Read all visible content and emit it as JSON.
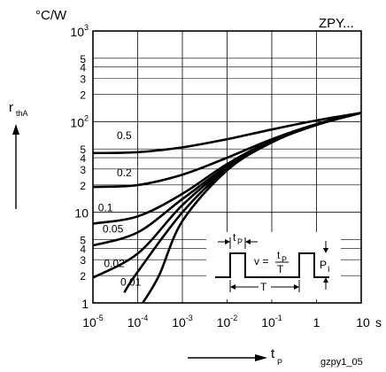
{
  "chart_data": {
    "type": "line",
    "title": "ZPY...",
    "y_unit": "°C/W",
    "ylabel_main": "r",
    "ylabel_sub": "thA",
    "xlabel_main": "t",
    "xlabel_sub": "P",
    "x_unit": "s",
    "footnote": "gzpy1_05",
    "x_scale": "log",
    "y_scale": "log",
    "xlim": [
      1e-05,
      10
    ],
    "ylim": [
      1,
      1000
    ],
    "grid": true,
    "x_ticks": [
      {
        "base": "10",
        "exp": "-5"
      },
      {
        "base": "10",
        "exp": "-4"
      },
      {
        "base": "10",
        "exp": "-3"
      },
      {
        "base": "10",
        "exp": "-2"
      },
      {
        "base": "10",
        "exp": "-1"
      },
      {
        "base": "1",
        "exp": ""
      },
      {
        "base": "10",
        "exp": ""
      }
    ],
    "y_major_ticks": [
      {
        "value": 1,
        "base": "1",
        "exp": ""
      },
      {
        "value": 10,
        "base": "10",
        "exp": ""
      },
      {
        "value": 100,
        "base": "10",
        "exp": "2"
      },
      {
        "value": 1000,
        "base": "10",
        "exp": "3"
      }
    ],
    "y_minor_ticks": [
      {
        "value": 2,
        "label": "2"
      },
      {
        "value": 3,
        "label": "3"
      },
      {
        "value": 4,
        "label": "4"
      },
      {
        "value": 5,
        "label": "5"
      },
      {
        "value": 20,
        "label": "2"
      },
      {
        "value": 30,
        "label": "3"
      },
      {
        "value": 40,
        "label": "4"
      },
      {
        "value": 50,
        "label": "5"
      },
      {
        "value": 200,
        "label": "2"
      },
      {
        "value": 300,
        "label": "3"
      },
      {
        "value": 400,
        "label": "4"
      },
      {
        "value": 500,
        "label": "5"
      }
    ],
    "series": [
      {
        "name": "0.5",
        "points": [
          [
            1e-05,
            45
          ],
          [
            0.0001,
            46
          ],
          [
            0.001,
            52
          ],
          [
            0.01,
            64
          ],
          [
            0.1,
            82
          ],
          [
            1,
            103
          ],
          [
            10,
            125
          ]
        ]
      },
      {
        "name": "0.2",
        "points": [
          [
            1e-05,
            19
          ],
          [
            0.0001,
            20
          ],
          [
            0.001,
            26
          ],
          [
            0.01,
            40
          ],
          [
            0.1,
            64
          ],
          [
            1,
            94
          ],
          [
            10,
            125
          ]
        ]
      },
      {
        "name": "0.1",
        "points": [
          [
            1e-05,
            7.5
          ],
          [
            0.0001,
            9
          ],
          [
            0.001,
            16
          ],
          [
            0.01,
            34
          ],
          [
            0.1,
            62
          ],
          [
            1,
            93
          ],
          [
            10,
            125
          ]
        ]
      },
      {
        "name": "0.05",
        "points": [
          [
            1e-05,
            4.3
          ],
          [
            0.0001,
            6
          ],
          [
            0.001,
            14
          ],
          [
            0.01,
            32
          ],
          [
            0.1,
            61
          ],
          [
            1,
            93
          ],
          [
            10,
            125
          ]
        ]
      },
      {
        "name": "0.02",
        "points": [
          [
            1e-05,
            1.9
          ],
          [
            0.0001,
            3.5
          ],
          [
            0.001,
            12
          ],
          [
            0.01,
            31
          ],
          [
            0.1,
            60
          ],
          [
            1,
            92
          ],
          [
            10,
            125
          ]
        ]
      },
      {
        "name": "0.01",
        "points": [
          [
            5e-05,
            1.3
          ],
          [
            0.0001,
            2.2
          ],
          [
            0.001,
            10
          ],
          [
            0.01,
            30
          ],
          [
            0.1,
            60
          ],
          [
            1,
            92
          ],
          [
            10,
            125
          ]
        ]
      },
      {
        "name": "",
        "points": [
          [
            0.00013,
            1
          ],
          [
            0.0003,
            2
          ],
          [
            0.001,
            8
          ],
          [
            0.01,
            29
          ],
          [
            0.1,
            59
          ],
          [
            1,
            92
          ],
          [
            10,
            125
          ]
        ]
      }
    ],
    "inset": {
      "formula_lhs": "v =",
      "numerator_main": "t",
      "numerator_sub": "P",
      "denominator": "T",
      "tp_main": "t",
      "tp_sub": "P",
      "period_label": "T",
      "pi_main": "P",
      "pi_sub": "I"
    }
  }
}
